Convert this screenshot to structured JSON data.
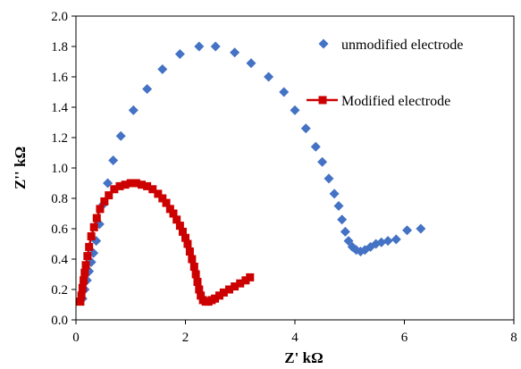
{
  "chart_data": {
    "type": "scatter",
    "xlabel": "Z' kΩ",
    "ylabel": "Z'' kΩ",
    "xlim": [
      0,
      8
    ],
    "ylim": [
      0,
      2.0
    ],
    "xticks": [
      0,
      2,
      4,
      6,
      8
    ],
    "yticks": [
      0.0,
      0.2,
      0.4,
      0.6,
      0.8,
      1.0,
      1.2,
      1.4,
      1.6,
      1.8,
      2.0
    ],
    "grid": false,
    "legend_position": "top-right",
    "series": [
      {
        "name": "unmodified electrode",
        "marker": "diamond",
        "color": "#4472C4",
        "points": [
          [
            0.12,
            0.14
          ],
          [
            0.16,
            0.2
          ],
          [
            0.2,
            0.26
          ],
          [
            0.24,
            0.32
          ],
          [
            0.28,
            0.38
          ],
          [
            0.32,
            0.44
          ],
          [
            0.37,
            0.52
          ],
          [
            0.43,
            0.63
          ],
          [
            0.5,
            0.76
          ],
          [
            0.58,
            0.9
          ],
          [
            0.68,
            1.05
          ],
          [
            0.82,
            1.21
          ],
          [
            1.05,
            1.38
          ],
          [
            1.3,
            1.52
          ],
          [
            1.58,
            1.65
          ],
          [
            1.9,
            1.75
          ],
          [
            2.25,
            1.8
          ],
          [
            2.55,
            1.8
          ],
          [
            2.9,
            1.76
          ],
          [
            3.2,
            1.69
          ],
          [
            3.52,
            1.6
          ],
          [
            3.8,
            1.5
          ],
          [
            4.0,
            1.38
          ],
          [
            4.2,
            1.26
          ],
          [
            4.38,
            1.14
          ],
          [
            4.5,
            1.04
          ],
          [
            4.62,
            0.93
          ],
          [
            4.72,
            0.83
          ],
          [
            4.8,
            0.75
          ],
          [
            4.86,
            0.66
          ],
          [
            4.92,
            0.58
          ],
          [
            4.98,
            0.52
          ],
          [
            5.05,
            0.48
          ],
          [
            5.12,
            0.46
          ],
          [
            5.2,
            0.45
          ],
          [
            5.28,
            0.46
          ],
          [
            5.38,
            0.48
          ],
          [
            5.48,
            0.5
          ],
          [
            5.58,
            0.51
          ],
          [
            5.7,
            0.52
          ],
          [
            5.85,
            0.53
          ],
          [
            6.05,
            0.59
          ],
          [
            6.3,
            0.6
          ]
        ]
      },
      {
        "name": "Modified electrode",
        "marker": "square",
        "color": "#CC0000",
        "points": [
          [
            0.08,
            0.12
          ],
          [
            0.1,
            0.16
          ],
          [
            0.12,
            0.21
          ],
          [
            0.14,
            0.26
          ],
          [
            0.16,
            0.31
          ],
          [
            0.18,
            0.36
          ],
          [
            0.21,
            0.42
          ],
          [
            0.24,
            0.48
          ],
          [
            0.28,
            0.55
          ],
          [
            0.33,
            0.61
          ],
          [
            0.38,
            0.67
          ],
          [
            0.44,
            0.73
          ],
          [
            0.52,
            0.78
          ],
          [
            0.6,
            0.82
          ],
          [
            0.7,
            0.86
          ],
          [
            0.8,
            0.88
          ],
          [
            0.9,
            0.89
          ],
          [
            1.0,
            0.9
          ],
          [
            1.1,
            0.9
          ],
          [
            1.2,
            0.89
          ],
          [
            1.3,
            0.88
          ],
          [
            1.4,
            0.86
          ],
          [
            1.5,
            0.83
          ],
          [
            1.58,
            0.8
          ],
          [
            1.65,
            0.77
          ],
          [
            1.72,
            0.73
          ],
          [
            1.78,
            0.7
          ],
          [
            1.84,
            0.66
          ],
          [
            1.9,
            0.62
          ],
          [
            1.95,
            0.58
          ],
          [
            2.0,
            0.54
          ],
          [
            2.04,
            0.5
          ],
          [
            2.08,
            0.45
          ],
          [
            2.12,
            0.4
          ],
          [
            2.16,
            0.35
          ],
          [
            2.19,
            0.3
          ],
          [
            2.22,
            0.25
          ],
          [
            2.25,
            0.2
          ],
          [
            2.28,
            0.16
          ],
          [
            2.32,
            0.13
          ],
          [
            2.37,
            0.12
          ],
          [
            2.42,
            0.12
          ],
          [
            2.48,
            0.13
          ],
          [
            2.54,
            0.14
          ],
          [
            2.62,
            0.16
          ],
          [
            2.7,
            0.18
          ],
          [
            2.8,
            0.2
          ],
          [
            2.9,
            0.22
          ],
          [
            3.0,
            0.24
          ],
          [
            3.1,
            0.26
          ],
          [
            3.18,
            0.28
          ]
        ]
      }
    ]
  }
}
